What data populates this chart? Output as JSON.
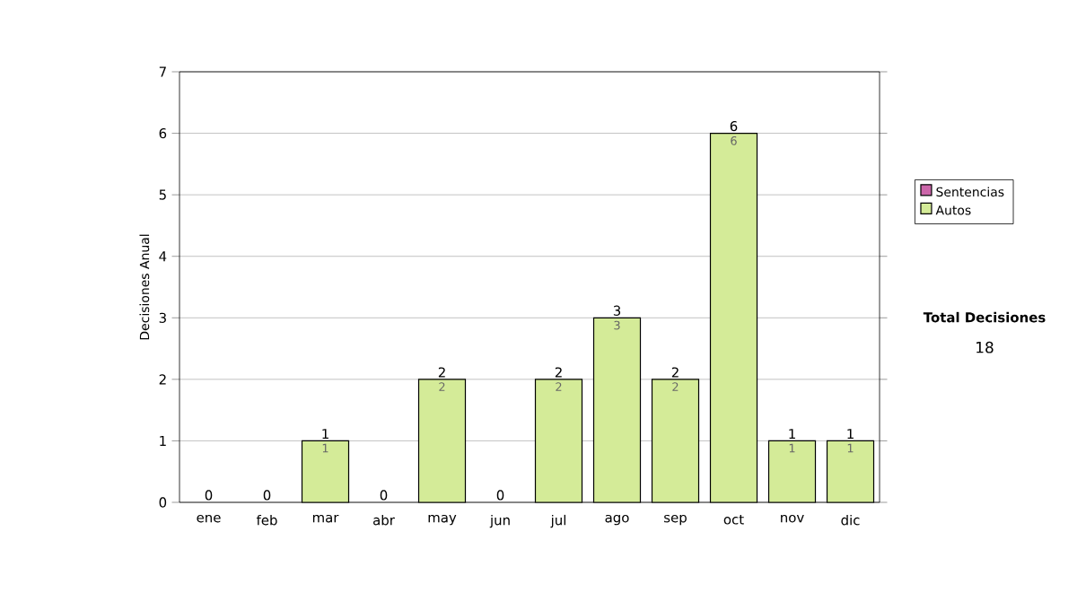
{
  "chart_data": {
    "type": "bar",
    "stacked": true,
    "ylabel": "Decisiones Anual",
    "categories": [
      "ene",
      "feb",
      "mar",
      "abr",
      "may",
      "jun",
      "jul",
      "ago",
      "sep",
      "oct",
      "nov",
      "dic"
    ],
    "series": [
      {
        "name": "Sentencias",
        "color": "#cc66aa",
        "values": [
          0,
          0,
          0,
          0,
          0,
          0,
          0,
          0,
          0,
          0,
          0,
          0
        ]
      },
      {
        "name": "Autos",
        "color": "#d4eb98",
        "values": [
          0,
          0,
          1,
          0,
          2,
          0,
          2,
          3,
          2,
          6,
          1,
          1
        ],
        "value_labels": [
          null,
          null,
          "1",
          null,
          "2",
          null,
          "2",
          "3",
          "2",
          "6",
          "1",
          "1"
        ]
      }
    ],
    "totals": [
      "0",
      "0",
      "1",
      "0",
      "2",
      "0",
      "2",
      "3",
      "2",
      "6",
      "1",
      "1"
    ],
    "ylim": [
      0,
      7
    ],
    "yticks": [
      0,
      1,
      2,
      3,
      4,
      5,
      6,
      7
    ],
    "grid": "y",
    "legend": "right",
    "annotations": [
      "Total Decisiones",
      "18"
    ]
  }
}
